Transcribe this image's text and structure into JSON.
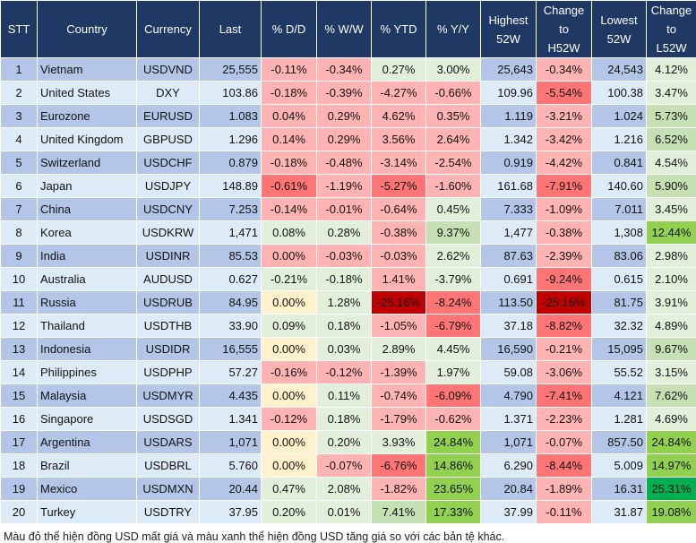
{
  "headers": [
    "STT",
    "Country",
    "Currency",
    "Last",
    "% D/D",
    "% W/W",
    "% YTD",
    "% Y/Y",
    "Highest 52W",
    "Change to H52W",
    "Lowest 52W",
    "Change to L52W"
  ],
  "colors": {
    "r1": "#ffb3b3",
    "r2": "#ff7575",
    "r3": "#c00000",
    "g1": "#e2efda",
    "g2": "#c6e0b4",
    "g3": "#92d050",
    "g4": "#00b050",
    "y": "#fff2cc",
    "header": "#203864",
    "row_odd": "#b4c6e7",
    "row_even": "#ddebf7"
  },
  "rows": [
    {
      "stt": "1",
      "country": "Vietnam",
      "currency": "USDVND",
      "last": "25,555",
      "dd": "-0.11%",
      "ww": "-0.34%",
      "ytd": "0.27%",
      "yy": "3.00%",
      "h52": "25,643",
      "ch": "-0.34%",
      "l52": "24,543",
      "cl": "4.12%",
      "shade": [
        "r1",
        "r1",
        "g1",
        "g1",
        "r1",
        "g1"
      ]
    },
    {
      "stt": "2",
      "country": "United States",
      "currency": "DXY",
      "last": "103.86",
      "dd": "-0.18%",
      "ww": "-0.39%",
      "ytd": "-4.27%",
      "yy": "-0.66%",
      "h52": "109.96",
      "ch": "-5.54%",
      "l52": "100.38",
      "cl": "3.47%",
      "shade": [
        "r1",
        "r1",
        "r1",
        "r1",
        "r2",
        "g1"
      ]
    },
    {
      "stt": "3",
      "country": "Eurozone",
      "currency": "EURUSD",
      "last": "1.083",
      "dd": "0.04%",
      "ww": "0.29%",
      "ytd": "4.62%",
      "yy": "0.35%",
      "h52": "1.119",
      "ch": "-3.21%",
      "l52": "1.024",
      "cl": "5.73%",
      "shade": [
        "r1",
        "r1",
        "r1",
        "r1",
        "r1",
        "g2"
      ]
    },
    {
      "stt": "4",
      "country": "United Kingdom",
      "currency": "GBPUSD",
      "last": "1.296",
      "dd": "0.14%",
      "ww": "0.29%",
      "ytd": "3.56%",
      "yy": "2.64%",
      "h52": "1.342",
      "ch": "-3.42%",
      "l52": "1.216",
      "cl": "6.52%",
      "shade": [
        "r1",
        "r1",
        "r1",
        "r1",
        "r1",
        "g2"
      ]
    },
    {
      "stt": "5",
      "country": "Switzerland",
      "currency": "USDCHF",
      "last": "0.879",
      "dd": "-0.18%",
      "ww": "-0.48%",
      "ytd": "-3.14%",
      "yy": "-2.54%",
      "h52": "0.919",
      "ch": "-4.42%",
      "l52": "0.841",
      "cl": "4.54%",
      "shade": [
        "r1",
        "r1",
        "r1",
        "r1",
        "r1",
        "g1"
      ]
    },
    {
      "stt": "6",
      "country": "Japan",
      "currency": "USDJPY",
      "last": "148.89",
      "dd": "-0.61%",
      "ww": "-1.19%",
      "ytd": "-5.27%",
      "yy": "-1.60%",
      "h52": "161.68",
      "ch": "-7.91%",
      "l52": "140.60",
      "cl": "5.90%",
      "shade": [
        "r2",
        "r1",
        "r2",
        "r1",
        "r2",
        "g2"
      ]
    },
    {
      "stt": "7",
      "country": "China",
      "currency": "USDCNY",
      "last": "7.253",
      "dd": "-0.14%",
      "ww": "-0.01%",
      "ytd": "-0.64%",
      "yy": "0.45%",
      "h52": "7.333",
      "ch": "-1.09%",
      "l52": "7.011",
      "cl": "3.45%",
      "shade": [
        "r1",
        "r1",
        "r1",
        "g1",
        "r1",
        "g1"
      ]
    },
    {
      "stt": "8",
      "country": "Korea",
      "currency": "USDKRW",
      "last": "1,471",
      "dd": "0.08%",
      "ww": "0.28%",
      "ytd": "-0.38%",
      "yy": "9.37%",
      "h52": "1,477",
      "ch": "-0.38%",
      "l52": "1,308",
      "cl": "12.44%",
      "shade": [
        "g1",
        "g1",
        "r1",
        "g2",
        "r1",
        "g3"
      ]
    },
    {
      "stt": "9",
      "country": "India",
      "currency": "USDINR",
      "last": "85.53",
      "dd": "0.00%",
      "ww": "-0.03%",
      "ytd": "-0.03%",
      "yy": "2.62%",
      "h52": "87.63",
      "ch": "-2.39%",
      "l52": "83.06",
      "cl": "2.98%",
      "shade": [
        "r1",
        "r1",
        "r1",
        "g1",
        "r1",
        "g1"
      ]
    },
    {
      "stt": "10",
      "country": "Australia",
      "currency": "AUDUSD",
      "last": "0.627",
      "dd": "-0.21%",
      "ww": "-0.18%",
      "ytd": "1.41%",
      "yy": "-3.79%",
      "h52": "0.691",
      "ch": "-9.24%",
      "l52": "0.615",
      "cl": "2.10%",
      "shade": [
        "g1",
        "g1",
        "r1",
        "g1",
        "r2",
        "g1"
      ]
    },
    {
      "stt": "11",
      "country": "Russia",
      "currency": "USDRUB",
      "last": "84.95",
      "dd": "0.00%",
      "ww": "1.28%",
      "ytd": "-25.16%",
      "yy": "-8.24%",
      "h52": "113.50",
      "ch": "-25.16%",
      "l52": "81.75",
      "cl": "3.91%",
      "shade": [
        "y",
        "g1",
        "r3",
        "r2",
        "r3",
        "g1"
      ]
    },
    {
      "stt": "12",
      "country": "Thailand",
      "currency": "USDTHB",
      "last": "33.90",
      "dd": "0.09%",
      "ww": "0.18%",
      "ytd": "-1.05%",
      "yy": "-6.79%",
      "h52": "37.18",
      "ch": "-8.82%",
      "l52": "32.32",
      "cl": "4.89%",
      "shade": [
        "g1",
        "g1",
        "r1",
        "r2",
        "r2",
        "g1"
      ]
    },
    {
      "stt": "13",
      "country": "Indonesia",
      "currency": "USDIDR",
      "last": "16,555",
      "dd": "0.00%",
      "ww": "0.03%",
      "ytd": "2.89%",
      "yy": "4.45%",
      "h52": "16,590",
      "ch": "-0.21%",
      "l52": "15,095",
      "cl": "9.67%",
      "shade": [
        "y",
        "g1",
        "g1",
        "g1",
        "r1",
        "g2"
      ]
    },
    {
      "stt": "14",
      "country": "Philippines",
      "currency": "USDPHP",
      "last": "57.27",
      "dd": "-0.16%",
      "ww": "-0.12%",
      "ytd": "-1.39%",
      "yy": "1.97%",
      "h52": "59.08",
      "ch": "-3.06%",
      "l52": "55.52",
      "cl": "3.15%",
      "shade": [
        "r1",
        "r1",
        "r1",
        "g1",
        "r1",
        "g1"
      ]
    },
    {
      "stt": "15",
      "country": "Malaysia",
      "currency": "USDMYR",
      "last": "4.435",
      "dd": "0.00%",
      "ww": "0.11%",
      "ytd": "-0.74%",
      "yy": "-6.09%",
      "h52": "4.790",
      "ch": "-7.41%",
      "l52": "4.121",
      "cl": "7.62%",
      "shade": [
        "y",
        "g1",
        "r1",
        "r2",
        "r2",
        "g2"
      ]
    },
    {
      "stt": "16",
      "country": "Singapore",
      "currency": "USDSGD",
      "last": "1.341",
      "dd": "-0.12%",
      "ww": "0.18%",
      "ytd": "-1.79%",
      "yy": "-0.62%",
      "h52": "1.371",
      "ch": "-2.23%",
      "l52": "1.281",
      "cl": "4.69%",
      "shade": [
        "r1",
        "g1",
        "r1",
        "r1",
        "r1",
        "g1"
      ]
    },
    {
      "stt": "17",
      "country": "Argentina",
      "currency": "USDARS",
      "last": "1,071",
      "dd": "0.00%",
      "ww": "0.20%",
      "ytd": "3.93%",
      "yy": "24.84%",
      "h52": "1,071",
      "ch": "-0.07%",
      "l52": "857.50",
      "cl": "24.84%",
      "shade": [
        "y",
        "g1",
        "g1",
        "g3",
        "r1",
        "g3"
      ]
    },
    {
      "stt": "18",
      "country": "Brazil",
      "currency": "USDBRL",
      "last": "5.760",
      "dd": "0.00%",
      "ww": "-0.07%",
      "ytd": "-6.76%",
      "yy": "14.86%",
      "h52": "6.290",
      "ch": "-8.44%",
      "l52": "5.009",
      "cl": "14.97%",
      "shade": [
        "y",
        "r1",
        "r2",
        "g3",
        "r2",
        "g3"
      ]
    },
    {
      "stt": "19",
      "country": "Mexico",
      "currency": "USDMXN",
      "last": "20.44",
      "dd": "0.47%",
      "ww": "2.08%",
      "ytd": "-1.82%",
      "yy": "23.65%",
      "h52": "20.84",
      "ch": "-1.89%",
      "l52": "16.31",
      "cl": "25.31%",
      "shade": [
        "g1",
        "g1",
        "r1",
        "g3",
        "r1",
        "g4"
      ]
    },
    {
      "stt": "20",
      "country": "Turkey",
      "currency": "USDTRY",
      "last": "37.95",
      "dd": "0.20%",
      "ww": "0.01%",
      "ytd": "7.41%",
      "yy": "17.33%",
      "h52": "37.99",
      "ch": "-0.11%",
      "l52": "31.87",
      "cl": "19.08%",
      "shade": [
        "g1",
        "g1",
        "g2",
        "g3",
        "r1",
        "g3"
      ]
    }
  ],
  "note": "Màu đỏ thể hiện đồng USD mất giá và màu xanh thể hiện đồng USD tăng giá so với các bản tệ khác."
}
